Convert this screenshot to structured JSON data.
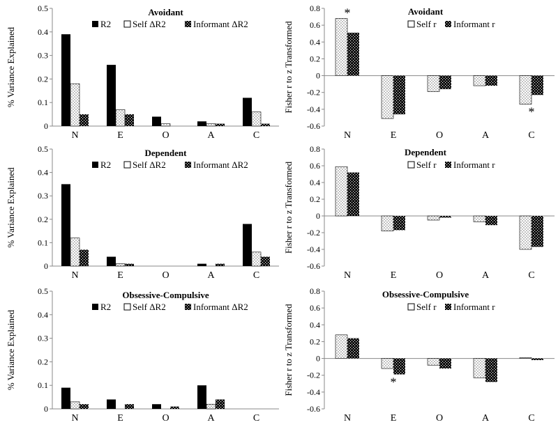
{
  "colors": {
    "solid": "#000000",
    "open": "#ffffff",
    "dotted": "#6f6f6f",
    "checker": "#000000"
  },
  "left_panels": {
    "ylabel": "% Variance Explained",
    "legend": [
      "R2",
      "Self ΔR2",
      "Informant ΔR2"
    ]
  },
  "right_panels": {
    "ylabel": "Fisher r to z Transformed",
    "legend": [
      "Self r",
      "Informant r"
    ]
  },
  "chart_data": [
    {
      "type": "bar",
      "title": "Avoidant",
      "categories": [
        "N",
        "E",
        "O",
        "A",
        "C"
      ],
      "ylabel": "% Variance Explained",
      "ylim": [
        0,
        0.5
      ],
      "yticks": [
        "0",
        "0.1",
        "0.2",
        "0.3",
        "0.4",
        "0.5"
      ],
      "series": [
        {
          "name": "R2",
          "values": [
            0.39,
            0.26,
            0.04,
            0.02,
            0.12
          ]
        },
        {
          "name": "Self ΔR2",
          "values": [
            0.18,
            0.07,
            0.01,
            0.01,
            0.06
          ]
        },
        {
          "name": "Informant ΔR2",
          "values": [
            0.05,
            0.05,
            0.0,
            0.01,
            0.01
          ]
        }
      ]
    },
    {
      "type": "bar",
      "title": "Avoidant",
      "categories": [
        "N",
        "E",
        "O",
        "A",
        "C"
      ],
      "ylabel": "Fisher r to z Transformed",
      "ylim": [
        -0.6,
        0.8
      ],
      "yticks": [
        "-0.6",
        "-0.4",
        "-0.2",
        "0",
        "0.2",
        "0.4",
        "0.6",
        "0.8"
      ],
      "series": [
        {
          "name": "Self r",
          "values": [
            0.68,
            -0.51,
            -0.19,
            -0.12,
            -0.34
          ]
        },
        {
          "name": "Informant r",
          "values": [
            0.51,
            -0.46,
            -0.16,
            -0.12,
            -0.23
          ]
        }
      ],
      "annotations": [
        {
          "text": "*",
          "category": "N",
          "position": "above"
        },
        {
          "text": "*",
          "category": "C",
          "position": "below"
        }
      ]
    },
    {
      "type": "bar",
      "title": "Dependent",
      "categories": [
        "N",
        "E",
        "O",
        "A",
        "C"
      ],
      "ylabel": "% Variance Explained",
      "ylim": [
        0,
        0.5
      ],
      "yticks": [
        "0",
        "0.1",
        "0.2",
        "0.3",
        "0.4",
        "0.5"
      ],
      "series": [
        {
          "name": "R2",
          "values": [
            0.35,
            0.04,
            0.0,
            0.01,
            0.18
          ]
        },
        {
          "name": "Self ΔR2",
          "values": [
            0.12,
            0.01,
            0.0,
            0.0,
            0.06
          ]
        },
        {
          "name": "Informant ΔR2",
          "values": [
            0.07,
            0.01,
            0.0,
            0.01,
            0.04
          ]
        }
      ]
    },
    {
      "type": "bar",
      "title": "Dependent",
      "categories": [
        "N",
        "E",
        "O",
        "A",
        "C"
      ],
      "ylabel": "Fisher r to z Transformed",
      "ylim": [
        -0.6,
        0.8
      ],
      "yticks": [
        "-0.6",
        "-0.4",
        "-0.2",
        "0",
        "0.2",
        "0.4",
        "0.6",
        "0.8"
      ],
      "series": [
        {
          "name": "Self r",
          "values": [
            0.59,
            -0.18,
            -0.05,
            -0.07,
            -0.4
          ]
        },
        {
          "name": "Informant r",
          "values": [
            0.52,
            -0.17,
            -0.02,
            -0.11,
            -0.37
          ]
        }
      ],
      "annotations": []
    },
    {
      "type": "bar",
      "title": "Obsessive-Compulsive",
      "categories": [
        "N",
        "E",
        "O",
        "A",
        "C"
      ],
      "ylabel": "% Variance Explained",
      "ylim": [
        0,
        0.5
      ],
      "yticks": [
        "0",
        "0.1",
        "0.2",
        "0.3",
        "0.4",
        "0.5"
      ],
      "series": [
        {
          "name": "R2",
          "values": [
            0.09,
            0.04,
            0.02,
            0.1,
            0.0
          ]
        },
        {
          "name": "Self ΔR2",
          "values": [
            0.03,
            0.0,
            0.0,
            0.02,
            0.0
          ]
        },
        {
          "name": "Informant ΔR2",
          "values": [
            0.02,
            0.02,
            0.01,
            0.04,
            0.0
          ]
        }
      ]
    },
    {
      "type": "bar",
      "title": "Obsessive-Compulsive",
      "categories": [
        "N",
        "E",
        "O",
        "A",
        "C"
      ],
      "ylabel": "Fisher r to z Transformed",
      "ylim": [
        -0.6,
        0.8
      ],
      "yticks": [
        "-0.6",
        "-0.4",
        "-0.2",
        "0",
        "0.2",
        "0.4",
        "0.6",
        "0.8"
      ],
      "series": [
        {
          "name": "Self r",
          "values": [
            0.28,
            -0.12,
            -0.08,
            -0.23,
            0.01
          ]
        },
        {
          "name": "Informant r",
          "values": [
            0.24,
            -0.19,
            -0.12,
            -0.28,
            -0.02
          ]
        }
      ],
      "annotations": [
        {
          "text": "*",
          "category": "E",
          "position": "below"
        }
      ]
    }
  ]
}
